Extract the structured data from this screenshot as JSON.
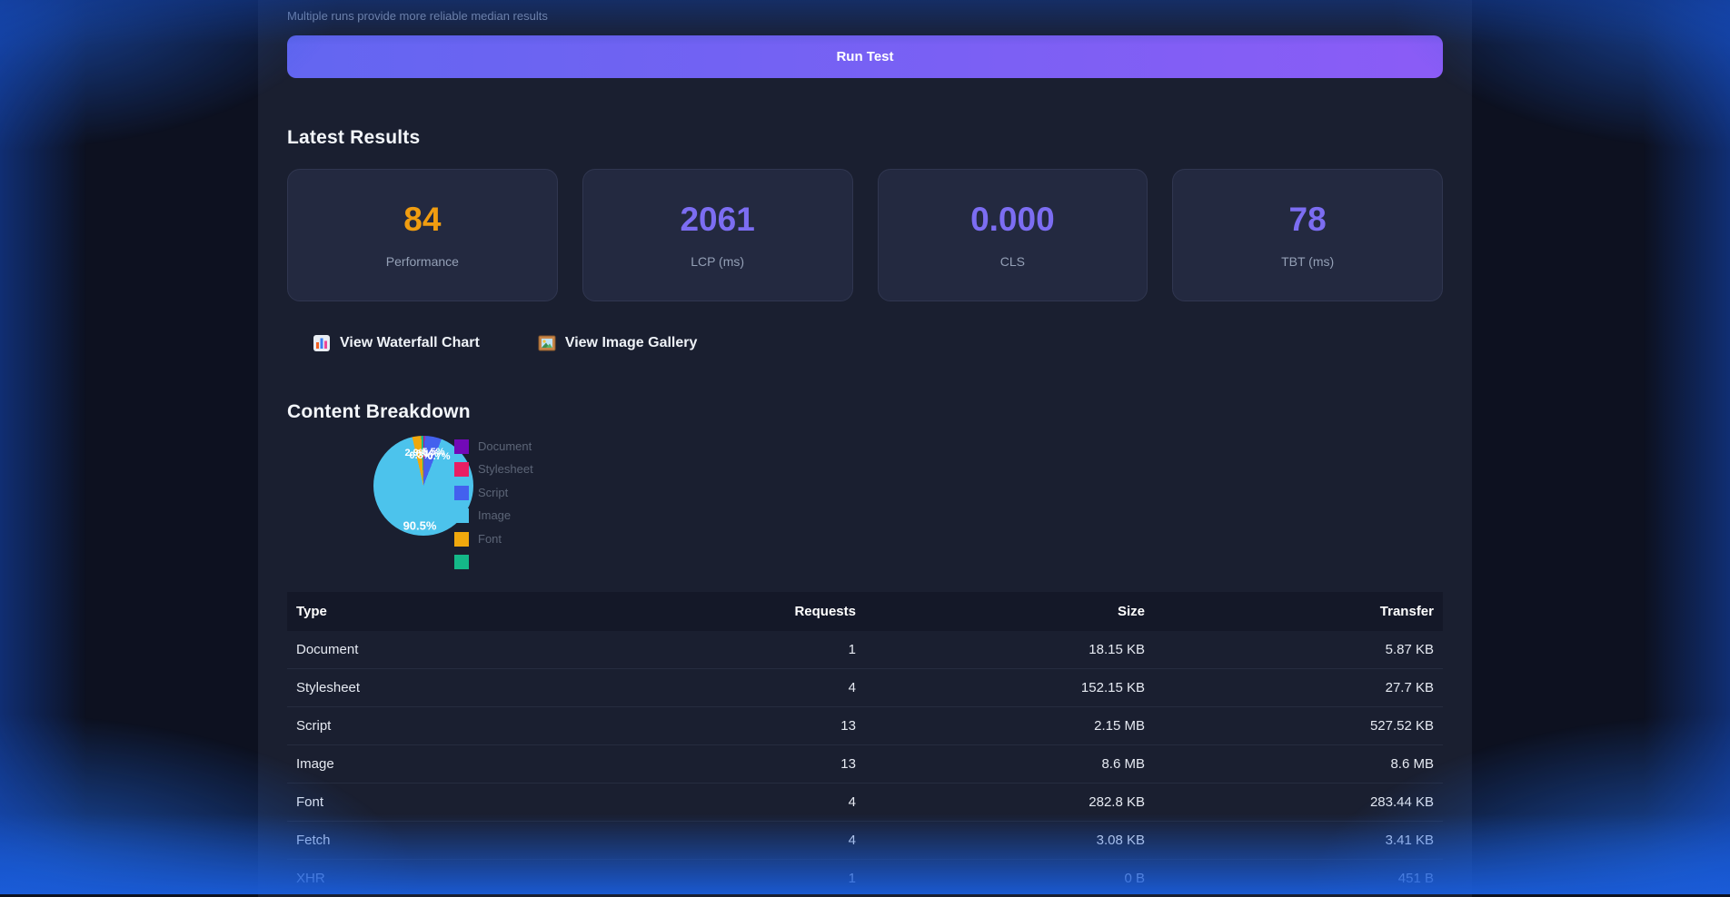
{
  "note": "Multiple runs provide more reliable median results",
  "run_button": {
    "label": "Run Test"
  },
  "latest_results": {
    "title": "Latest Results",
    "metrics": [
      {
        "value": "84",
        "label": "Performance",
        "color": "#f09d10"
      },
      {
        "value": "2061",
        "label": "LCP (ms)",
        "color": "#7c6df2"
      },
      {
        "value": "0.000",
        "label": "CLS",
        "color": "#7c6df2"
      },
      {
        "value": "78",
        "label": "TBT (ms)",
        "color": "#7c6df2"
      }
    ],
    "links": [
      {
        "icon": "waterfall-chart-icon",
        "label": "View Waterfall Chart"
      },
      {
        "icon": "image-gallery-icon",
        "label": "View Image Gallery"
      }
    ]
  },
  "content_breakdown": {
    "title": "Content Breakdown",
    "chart_data": {
      "type": "pie",
      "labels": [
        "Document",
        "Stylesheet",
        "Script",
        "Image",
        "Font",
        ""
      ],
      "values_percent": [
        0.1,
        0.3,
        5.5,
        90.5,
        2.9,
        0.7
      ],
      "colors": [
        "#7209b7",
        "#e91e63",
        "#4361ee",
        "#4cc3ec",
        "#f0a80d",
        "#14b888"
      ],
      "big_slice_label": "90.5%",
      "small_slice_labels": [
        "0.1%",
        "0.3%",
        "5.5%",
        "2.9%",
        "0.7%"
      ],
      "legend_position": "right",
      "legend_items": [
        {
          "label": "Document",
          "color": "#7209b7"
        },
        {
          "label": "Stylesheet",
          "color": "#e91e63"
        },
        {
          "label": "Script",
          "color": "#4361ee"
        },
        {
          "label": "Image",
          "color": "#4cc3ec"
        },
        {
          "label": "Font",
          "color": "#f0a80d"
        },
        {
          "label": "",
          "color": "#14b888"
        }
      ]
    },
    "table": {
      "headers": [
        "Type",
        "Requests",
        "Size",
        "Transfer"
      ],
      "rows": [
        [
          "Document",
          "1",
          "18.15 KB",
          "5.87 KB"
        ],
        [
          "Stylesheet",
          "4",
          "152.15 KB",
          "27.7 KB"
        ],
        [
          "Script",
          "13",
          "2.15 MB",
          "527.52 KB"
        ],
        [
          "Image",
          "13",
          "8.6 MB",
          "8.6 MB"
        ],
        [
          "Font",
          "4",
          "282.8 KB",
          "283.44 KB"
        ],
        [
          "Fetch",
          "4",
          "3.08 KB",
          "3.41 KB"
        ],
        [
          "XHR",
          "1",
          "0 B",
          "451 B"
        ]
      ]
    }
  }
}
